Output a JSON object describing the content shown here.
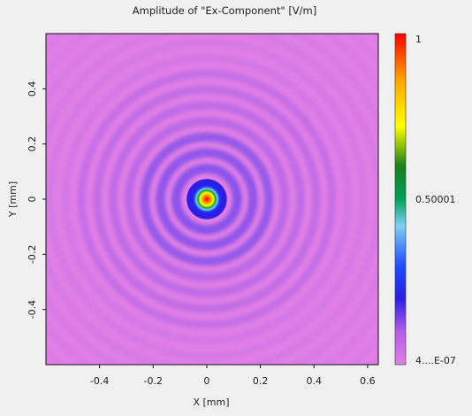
{
  "chart_data": {
    "type": "heatmap",
    "title": "Amplitude of \"Ex-Component\"  [V/m]",
    "xlabel": "X [mm]",
    "ylabel": "Y [mm]",
    "xlim": [
      -0.6,
      0.64
    ],
    "ylim": [
      -0.6,
      0.6
    ],
    "x_ticks": [
      -0.4,
      -0.2,
      0,
      0.2,
      0.4,
      0.6
    ],
    "x_tick_labels": [
      "-0.4",
      "-0.2",
      "0",
      "0.2",
      "0.4",
      "0.6"
    ],
    "y_ticks": [
      0.4,
      0.2,
      0,
      -0.2,
      -0.4
    ],
    "y_tick_labels": [
      "0.4",
      "0.2",
      "0",
      "-0.2",
      "-0.4"
    ],
    "colorbar": {
      "min_label": "4....E-07",
      "mid_label": "0.50001",
      "max_label": "1",
      "min_value": 4e-07,
      "mid_value": 0.50001,
      "max_value": 1,
      "colormap": [
        "#e07fe6",
        "#c062ea",
        "#2a1ee6",
        "#1f4dff",
        "#7fd0f4",
        "#00a05a",
        "#1a7f1a",
        "#ffff00",
        "#ffa500",
        "#ff0000"
      ]
    },
    "field_description": "concentric ripple pattern centered at origin, peak amplitude 1 at (0,0)",
    "grid": false,
    "legend": "colorbar-right"
  }
}
